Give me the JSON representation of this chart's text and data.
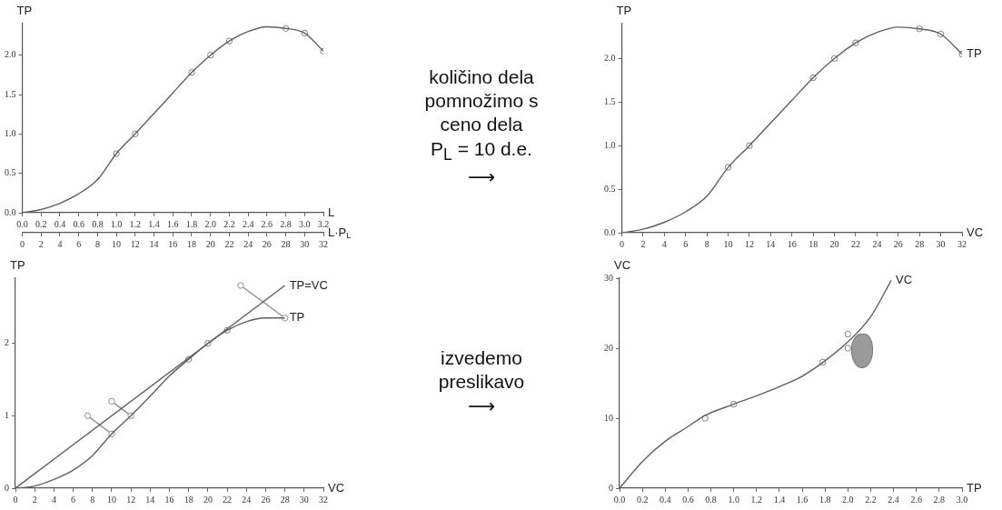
{
  "chart_data": [
    {
      "type": "line",
      "xlabel": "L",
      "x2label": "L·P$_{L}$",
      "ylabel": "TP",
      "xlim": [
        0,
        3.2
      ],
      "xticks": [
        {
          "value": 0,
          "label": "0.0"
        },
        0.2,
        0.4,
        0.6,
        0.8,
        {
          "value": 1,
          "label": "1.0"
        },
        1.2,
        1.4,
        1.6,
        1.8,
        {
          "value": 2,
          "label": "2.0"
        },
        2.2,
        2.4,
        2.6,
        2.8,
        {
          "value": 3,
          "label": "3.0"
        },
        3.2
      ],
      "x2lim": [
        0,
        32
      ],
      "x2ticks": [
        0,
        2,
        4,
        6,
        8,
        10,
        12,
        14,
        16,
        18,
        20,
        22,
        24,
        26,
        28,
        30,
        32
      ],
      "ylim": [
        0,
        2.4
      ],
      "yticks": [
        {
          "value": 0,
          "label": "0.0"
        },
        0.5,
        {
          "value": 1,
          "label": "1.0"
        },
        1.5,
        {
          "value": 2,
          "label": "2.0"
        }
      ],
      "grid": false,
      "legend": false,
      "series": [
        {
          "type": "line",
          "color": "#606060",
          "marker": "none",
          "x": [
            0,
            0.2,
            0.4,
            0.6,
            0.8,
            1,
            1.2,
            1.4,
            1.6,
            1.8,
            2,
            2.2,
            2.4,
            2.6,
            2.8,
            3,
            3.2
          ],
          "values": [
            0,
            0.04,
            0.12,
            0.24,
            0.42,
            0.75,
            1,
            1.26,
            1.52,
            1.78,
            2,
            2.18,
            2.3,
            2.36,
            2.34,
            2.28,
            2.05
          ]
        },
        {
          "type": "scatter",
          "color": "#808080",
          "marker": "circle",
          "x": [
            1,
            1.2,
            1.8,
            2,
            2.2,
            2.8,
            3,
            3.2
          ],
          "values": [
            0.75,
            1,
            1.78,
            2,
            2.18,
            2.34,
            2.28,
            2.05
          ]
        }
      ]
    },
    {
      "type": "other",
      "annotations": [
        "količino dela",
        "pomnožimo s",
        "ceno dela",
        "P$_{L}$ = 10 d.e.",
        "⟶"
      ]
    },
    {
      "type": "line",
      "xlabel": "VC",
      "ylabel": "TP",
      "xlim": [
        0,
        32
      ],
      "xticks": [
        0,
        2,
        4,
        6,
        8,
        10,
        12,
        14,
        16,
        18,
        20,
        22,
        24,
        26,
        28,
        30,
        32
      ],
      "ylim": [
        0,
        2.4
      ],
      "yticks": [
        {
          "value": 0,
          "label": "0.0"
        },
        0.5,
        {
          "value": 1,
          "label": "1.0"
        },
        1.5,
        {
          "value": 2,
          "label": "2.0"
        }
      ],
      "grid": false,
      "legend": false,
      "series": [
        {
          "type": "line",
          "name": "TP",
          "color": "#606060",
          "marker": "none",
          "x": [
            0,
            2,
            4,
            6,
            8,
            10,
            12,
            14,
            16,
            18,
            20,
            22,
            24,
            26,
            28,
            30,
            32
          ],
          "values": [
            0,
            0.04,
            0.12,
            0.24,
            0.42,
            0.75,
            1,
            1.26,
            1.52,
            1.78,
            2,
            2.18,
            2.3,
            2.36,
            2.34,
            2.28,
            2.05
          ]
        },
        {
          "type": "scatter",
          "color": "#808080",
          "marker": "circle",
          "x": [
            10,
            12,
            18,
            20,
            22,
            28,
            30,
            32
          ],
          "values": [
            0.75,
            1,
            1.78,
            2,
            2.18,
            2.34,
            2.28,
            2.05
          ]
        }
      ]
    },
    {
      "type": "line",
      "xlabel": "VC",
      "ylabel": "TP",
      "xlim": [
        0,
        32
      ],
      "xticks": [
        0,
        2,
        4,
        6,
        8,
        10,
        12,
        14,
        16,
        18,
        20,
        22,
        24,
        26,
        28,
        30,
        32
      ],
      "ylim": [
        0,
        2.9
      ],
      "yticks": [
        0,
        1,
        2
      ],
      "grid": false,
      "legend": false,
      "series": [
        {
          "type": "line",
          "name": "TP",
          "color": "#606060",
          "marker": "none",
          "x": [
            0,
            2,
            4,
            6,
            8,
            10,
            12,
            14,
            16,
            18,
            20,
            22,
            24,
            26,
            28
          ],
          "values": [
            0,
            0.03,
            0.12,
            0.25,
            0.45,
            0.75,
            1,
            1.27,
            1.55,
            1.78,
            2,
            2.18,
            2.3,
            2.35,
            2.35
          ]
        },
        {
          "type": "line",
          "name": "TP=VC",
          "color": "#606060",
          "marker": "none",
          "x": [
            0,
            28
          ],
          "values": [
            0,
            2.8
          ]
        },
        {
          "type": "line",
          "color": "#909090",
          "marker": "circle",
          "x": [
            7.5,
            10
          ],
          "values": [
            1,
            0.75
          ]
        },
        {
          "type": "line",
          "color": "#909090",
          "marker": "circle",
          "x": [
            10,
            12
          ],
          "values": [
            1.2,
            1
          ]
        },
        {
          "type": "line",
          "color": "#909090",
          "marker": "circle",
          "x": [
            23.4,
            28
          ],
          "values": [
            2.8,
            2.35
          ]
        },
        {
          "type": "scatter",
          "color": "#808080",
          "marker": "circle",
          "x": [
            18,
            20,
            22
          ],
          "values": [
            1.78,
            2,
            2.18
          ]
        }
      ]
    },
    {
      "type": "other",
      "annotations": [
        "izvedemo",
        "preslikavo",
        "⟶"
      ]
    },
    {
      "type": "line",
      "xlabel": "TP",
      "ylabel": "VC",
      "xlim": [
        0,
        3
      ],
      "xticks": [
        {
          "value": 0,
          "label": "0.0"
        },
        0.2,
        0.4,
        0.6,
        0.8,
        {
          "value": 1,
          "label": "1.0"
        },
        1.2,
        1.4,
        1.6,
        1.8,
        {
          "value": 2,
          "label": "2.0"
        },
        2.2,
        2.4,
        2.6,
        2.8,
        {
          "value": 3,
          "label": "3.0"
        }
      ],
      "ylim": [
        0,
        30
      ],
      "yticks": [
        0,
        10,
        20,
        30
      ],
      "grid": false,
      "legend": false,
      "series": [
        {
          "type": "line",
          "name": "VC",
          "color": "#606060",
          "marker": "none",
          "x": [
            0,
            0.2,
            0.4,
            0.6,
            0.75,
            1,
            1.2,
            1.4,
            1.6,
            1.8,
            2,
            2.2,
            2.38
          ],
          "values": [
            0,
            3.8,
            6.7,
            8.8,
            10.4,
            12,
            13.2,
            14.5,
            16,
            18.2,
            20.9,
            24.5,
            29.7
          ]
        },
        {
          "type": "scatter",
          "color": "#808080",
          "marker": "circle",
          "x": [
            0.75,
            1,
            1.78,
            2,
            2
          ],
          "values": [
            10,
            12,
            18,
            20,
            22
          ]
        }
      ]
    }
  ]
}
